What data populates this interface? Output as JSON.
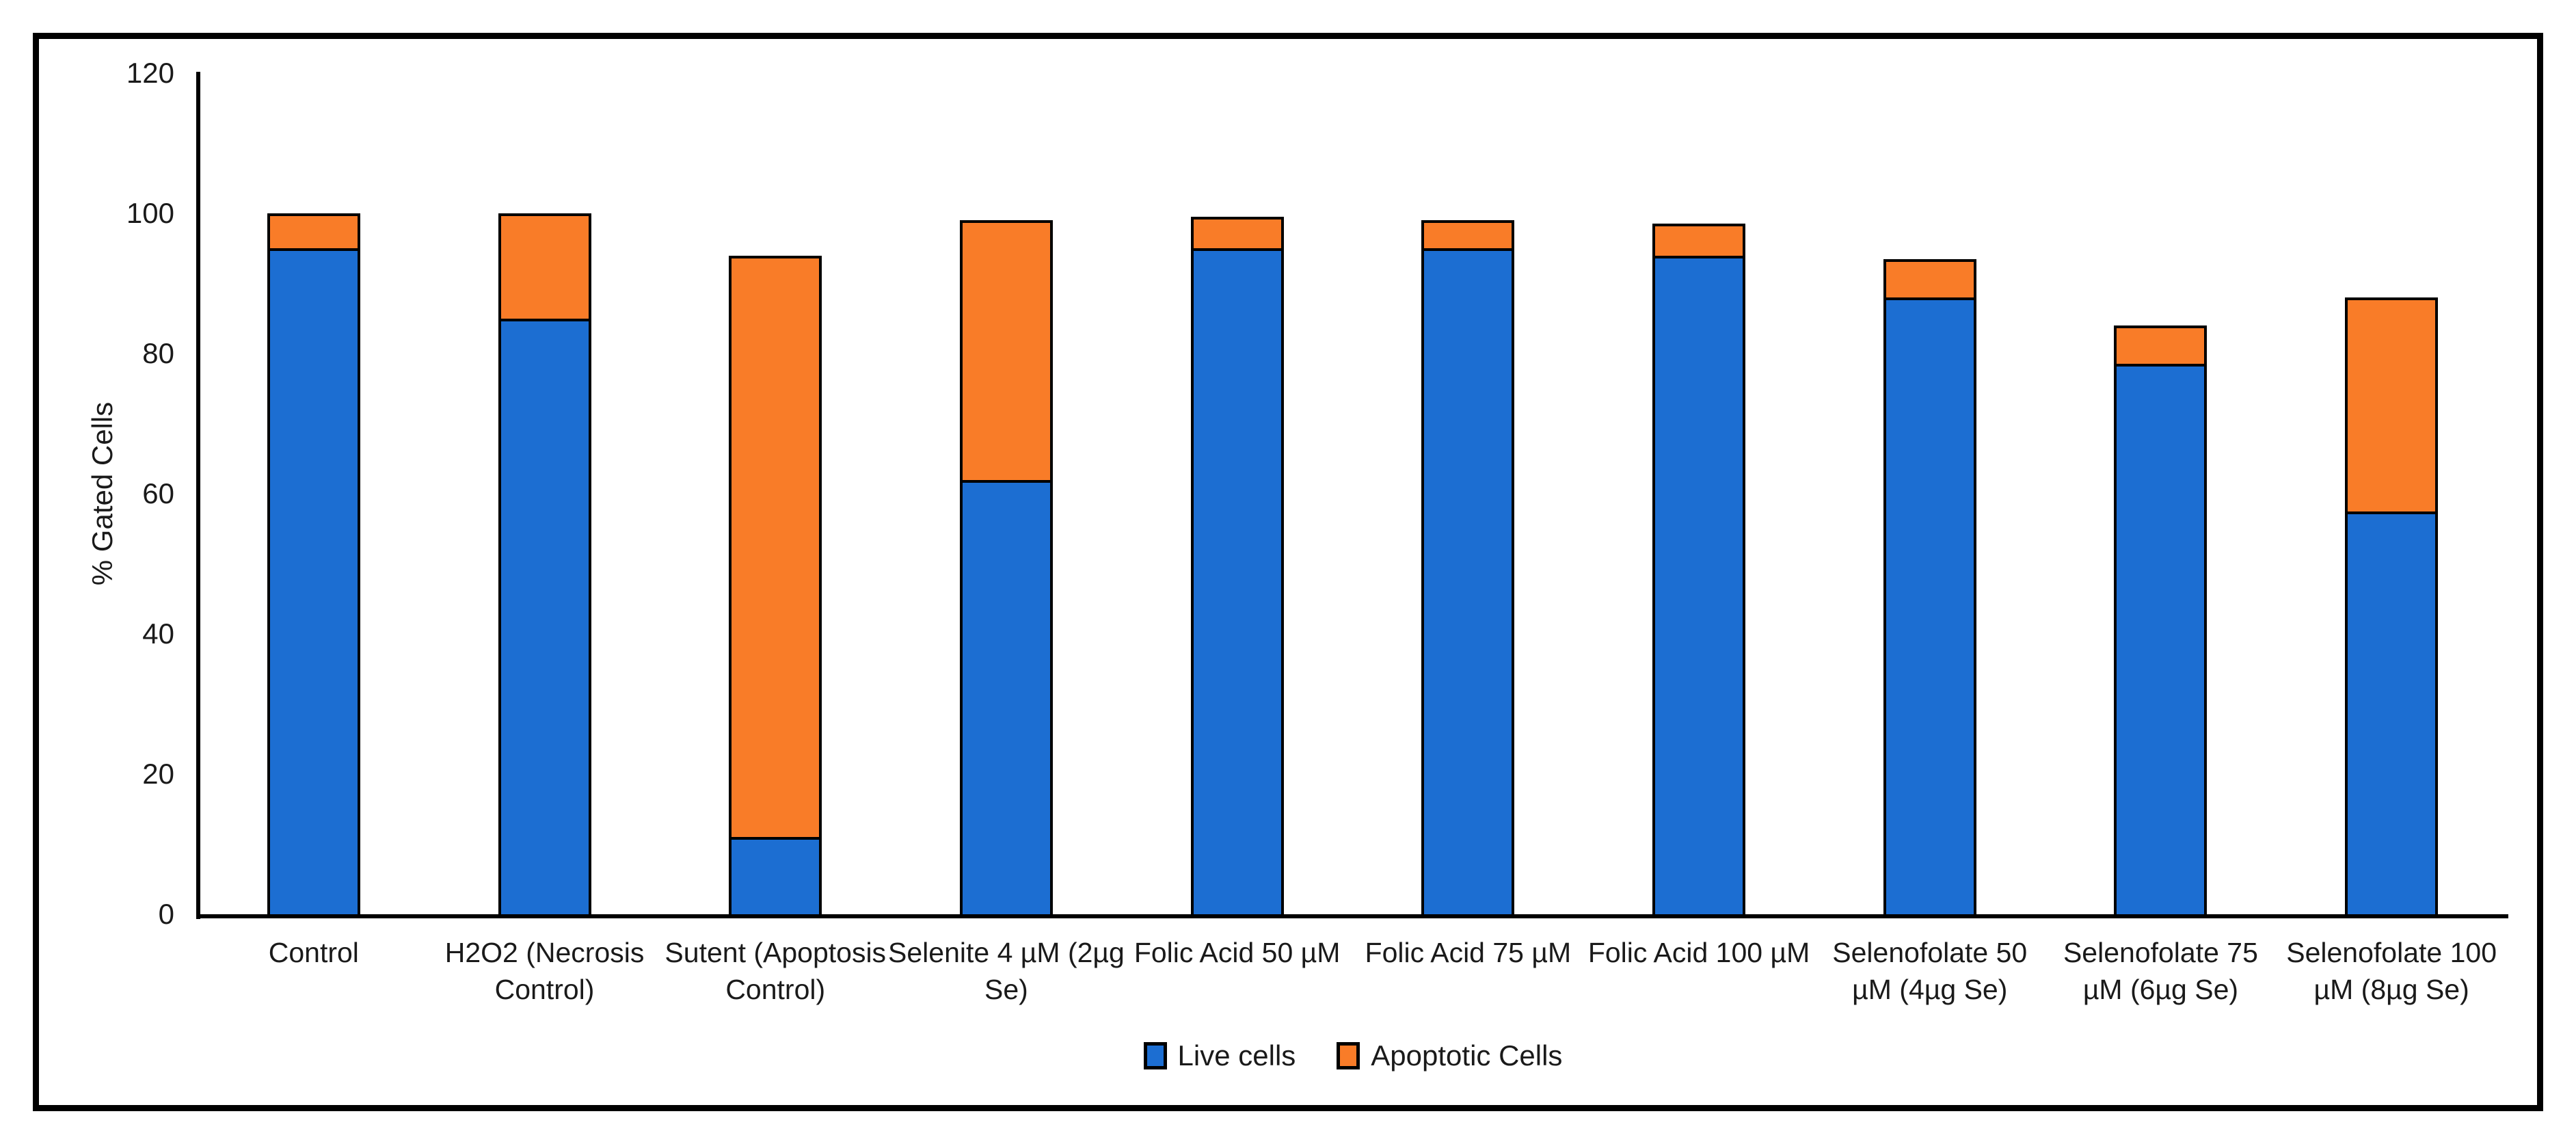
{
  "chart_data": {
    "type": "bar",
    "stacked": true,
    "title": "",
    "xlabel": "",
    "ylabel": "% Gated Cells",
    "ylim": [
      0,
      120
    ],
    "yticks": [
      0,
      20,
      40,
      60,
      80,
      100,
      120
    ],
    "grid": false,
    "legend_position": "bottom",
    "categories": [
      "Control",
      "H2O2 (Necrosis\nControl)",
      "Sutent (Apoptosis\nControl)",
      "Selenite 4 µM (2µg\nSe)",
      "Folic Acid 50 µM",
      "Folic Acid 75 µM",
      "Folic Acid 100 µM",
      "Selenofolate 50\nµM (4µg Se)",
      "Selenofolate 75\nµM (6µg Se)",
      "Selenofolate 100\nµM (8µg Se)"
    ],
    "series": [
      {
        "name": "Live cells",
        "color": "#1c6ed2",
        "values": [
          95,
          85,
          11,
          62,
          95,
          95,
          94,
          88,
          78.5,
          57.5
        ]
      },
      {
        "name": "Apoptotic Cells",
        "color": "#f97c28",
        "values": [
          5,
          15,
          83,
          37,
          4.5,
          4,
          4.5,
          5.5,
          5.5,
          30.5
        ]
      }
    ]
  },
  "colors": {
    "background": "#ffffff",
    "frame": "#000000",
    "axis": "#000000",
    "bar_outline": "#000000",
    "text": "#1a1a1a"
  }
}
